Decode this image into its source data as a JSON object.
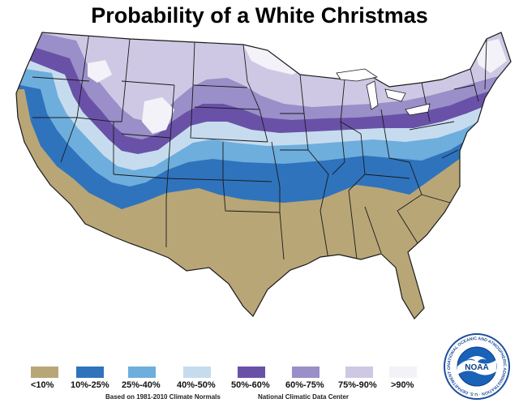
{
  "title": "Probability of a White Christmas",
  "legend": [
    {
      "label": "<10%",
      "color": "#b9a677"
    },
    {
      "label": "10%-25%",
      "color": "#2f73bd"
    },
    {
      "label": "25%-40%",
      "color": "#6eaedd"
    },
    {
      "label": "40%-50%",
      "color": "#c6dcee"
    },
    {
      "label": "50%-60%",
      "color": "#6a51a8"
    },
    {
      "label": "60%-75%",
      "color": "#9a8fc8"
    },
    {
      "label": "75%-90%",
      "color": "#cfc8e4"
    },
    {
      "label": ">90%",
      "color": "#f3f2f8"
    }
  ],
  "footer": {
    "left": "Based on 1981-2010 Climate Normals",
    "right": "National Climatic Data Center"
  },
  "seal": {
    "center_text": "NOAA",
    "ring_text": "NATIONAL OCEANIC AND ATMOSPHERIC ADMINISTRATION · U.S. DEPARTMENT OF COMMERCE"
  }
}
